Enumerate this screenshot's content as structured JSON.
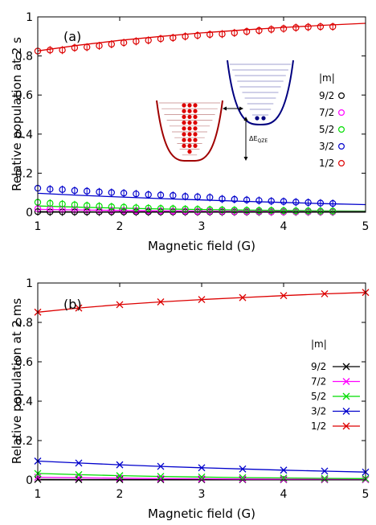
{
  "chart_data": [
    {
      "type": "scatter",
      "panel_label": "(a)",
      "xlabel": "Magnetic field (G)",
      "ylabel": "Relative population at 2 s",
      "xlim": [
        1,
        5
      ],
      "ylim": [
        0,
        1
      ],
      "x_ticks": [
        "1",
        "2",
        "3",
        "4",
        "5"
      ],
      "y_ticks": [
        "0",
        "0.2",
        "0.4",
        "0.6",
        "0.8",
        "1"
      ],
      "legend_title": "|m|",
      "legend_position": "right",
      "grid": false,
      "series": [
        {
          "name": "9/2",
          "color": "#000000",
          "marker": "circle-bar",
          "x": [
            1.0,
            1.15,
            1.3,
            1.45,
            1.6,
            1.75,
            1.9,
            2.05,
            2.2,
            2.35,
            2.5,
            2.65,
            2.8,
            2.95,
            3.1,
            3.25,
            3.4,
            3.55,
            3.7,
            3.85,
            4.0,
            4.15,
            4.3,
            4.45,
            4.6
          ],
          "y": [
            0.003,
            0.002,
            0.002,
            0.002,
            0.002,
            0.002,
            0.002,
            0.002,
            0.002,
            0.002,
            0.002,
            0.002,
            0.002,
            0.002,
            0.002,
            0.002,
            0.002,
            0.002,
            0.002,
            0.002,
            0.002,
            0.002,
            0.002,
            0.002,
            0.002
          ]
        },
        {
          "name": "7/2",
          "color": "#ff00ff",
          "marker": "circle-bar",
          "x": [
            1.0,
            1.15,
            1.3,
            1.45,
            1.6,
            1.75,
            1.9,
            2.05,
            2.2,
            2.35,
            2.5,
            2.65,
            2.8,
            2.95,
            3.1,
            3.25,
            3.4,
            3.55,
            3.7,
            3.85,
            4.0,
            4.15,
            4.3,
            4.45,
            4.6
          ],
          "y": [
            0.018,
            0.016,
            0.015,
            0.014,
            0.012,
            0.011,
            0.01,
            0.009,
            0.008,
            0.008,
            0.007,
            0.006,
            0.006,
            0.005,
            0.005,
            0.005,
            0.004,
            0.004,
            0.004,
            0.003,
            0.003,
            0.003,
            0.003,
            0.003,
            0.003
          ]
        },
        {
          "name": "5/2",
          "color": "#00dd00",
          "marker": "circle-bar",
          "x": [
            1.0,
            1.15,
            1.3,
            1.45,
            1.6,
            1.75,
            1.9,
            2.05,
            2.2,
            2.35,
            2.5,
            2.65,
            2.8,
            2.95,
            3.1,
            3.25,
            3.4,
            3.55,
            3.7,
            3.85,
            4.0,
            4.15,
            4.3,
            4.45,
            4.6
          ],
          "y": [
            0.051,
            0.046,
            0.042,
            0.038,
            0.034,
            0.031,
            0.028,
            0.026,
            0.023,
            0.021,
            0.019,
            0.018,
            0.016,
            0.015,
            0.013,
            0.012,
            0.011,
            0.01,
            0.009,
            0.009,
            0.008,
            0.007,
            0.007,
            0.006,
            0.006
          ]
        },
        {
          "name": "3/2",
          "color": "#0000cc",
          "marker": "circle-bar",
          "x": [
            1.0,
            1.15,
            1.3,
            1.45,
            1.6,
            1.75,
            1.9,
            2.05,
            2.2,
            2.35,
            2.5,
            2.65,
            2.8,
            2.95,
            3.1,
            3.25,
            3.4,
            3.55,
            3.7,
            3.85,
            4.0,
            4.15,
            4.3,
            4.45,
            4.6
          ],
          "y": [
            0.123,
            0.118,
            0.116,
            0.111,
            0.108,
            0.104,
            0.101,
            0.098,
            0.094,
            0.09,
            0.088,
            0.086,
            0.081,
            0.079,
            0.076,
            0.068,
            0.066,
            0.063,
            0.06,
            0.057,
            0.055,
            0.052,
            0.05,
            0.047,
            0.045
          ]
        },
        {
          "name": "1/2",
          "color": "#dd0000",
          "marker": "circle-bar",
          "x": [
            1.0,
            1.15,
            1.3,
            1.45,
            1.6,
            1.75,
            1.9,
            2.05,
            2.2,
            2.35,
            2.5,
            2.65,
            2.8,
            2.95,
            3.1,
            3.25,
            3.4,
            3.55,
            3.7,
            3.85,
            4.0,
            4.15,
            4.3,
            4.45,
            4.6
          ],
          "y": [
            0.825,
            0.83,
            0.83,
            0.842,
            0.845,
            0.852,
            0.86,
            0.868,
            0.875,
            0.88,
            0.888,
            0.893,
            0.9,
            0.905,
            0.91,
            0.912,
            0.918,
            0.925,
            0.93,
            0.936,
            0.94,
            0.945,
            0.948,
            0.95,
            0.95
          ]
        }
      ],
      "fit_lines": [
        {
          "name": "1/2",
          "color": "#dd0000",
          "x": [
            1,
            1.5,
            2,
            2.5,
            3,
            3.5,
            4,
            4.5,
            5
          ],
          "y": [
            0.826,
            0.855,
            0.88,
            0.9,
            0.918,
            0.933,
            0.946,
            0.957,
            0.967
          ]
        },
        {
          "name": "3/2",
          "color": "#0000cc",
          "x": [
            1,
            1.5,
            2,
            2.5,
            3,
            3.5,
            4,
            4.5,
            5
          ],
          "y": [
            0.097,
            0.087,
            0.078,
            0.07,
            0.063,
            0.056,
            0.05,
            0.044,
            0.039
          ]
        },
        {
          "name": "5/2",
          "color": "#00dd00",
          "x": [
            1,
            1.5,
            2,
            2.5,
            3,
            3.5,
            4,
            4.5,
            5
          ],
          "y": [
            0.032,
            0.026,
            0.021,
            0.017,
            0.014,
            0.011,
            0.009,
            0.007,
            0.006
          ]
        },
        {
          "name": "7/2",
          "color": "#ff00ff",
          "x": [
            1,
            1.5,
            2,
            2.5,
            3,
            3.5,
            4,
            4.5,
            5
          ],
          "y": [
            0.015,
            0.012,
            0.009,
            0.007,
            0.006,
            0.005,
            0.004,
            0.003,
            0.003
          ]
        },
        {
          "name": "9/2",
          "color": "#000000",
          "x": [
            1,
            1.5,
            2,
            2.5,
            3,
            3.5,
            4,
            4.5,
            5
          ],
          "y": [
            0.003,
            0.002,
            0.002,
            0.002,
            0.002,
            0.002,
            0.002,
            0.002,
            0.002
          ]
        }
      ],
      "inset": {
        "annotation": "ΔE",
        "annotation_subscript": "QZE"
      }
    },
    {
      "type": "line",
      "panel_label": "(b)",
      "xlabel": "Magnetic field (G)",
      "ylabel": "Relative population at 2 ms",
      "xlim": [
        1,
        5
      ],
      "ylim": [
        0,
        1
      ],
      "x_ticks": [
        "1",
        "2",
        "3",
        "4",
        "5"
      ],
      "y_ticks": [
        "0",
        "0.2",
        "0.4",
        "0.6",
        "0.8",
        "1"
      ],
      "legend_title": "|m|",
      "legend_position": "right",
      "grid": false,
      "x": [
        1.0,
        1.5,
        2.0,
        2.5,
        3.0,
        3.5,
        4.0,
        4.5,
        5.0
      ],
      "series": [
        {
          "name": "9/2",
          "color": "#000000",
          "marker": "x",
          "values": [
            0.003,
            0.002,
            0.002,
            0.002,
            0.002,
            0.002,
            0.002,
            0.002,
            0.002
          ]
        },
        {
          "name": "7/2",
          "color": "#ff00ff",
          "marker": "x",
          "values": [
            0.014,
            0.011,
            0.009,
            0.007,
            0.006,
            0.005,
            0.004,
            0.004,
            0.003
          ]
        },
        {
          "name": "5/2",
          "color": "#00dd00",
          "marker": "x",
          "values": [
            0.033,
            0.027,
            0.022,
            0.018,
            0.015,
            0.012,
            0.01,
            0.008,
            0.007
          ]
        },
        {
          "name": "3/2",
          "color": "#0000cc",
          "marker": "x",
          "values": [
            0.096,
            0.086,
            0.077,
            0.069,
            0.062,
            0.056,
            0.05,
            0.045,
            0.04
          ]
        },
        {
          "name": "1/2",
          "color": "#dd0000",
          "marker": "x",
          "values": [
            0.852,
            0.873,
            0.89,
            0.904,
            0.916,
            0.926,
            0.936,
            0.945,
            0.952
          ]
        }
      ]
    }
  ]
}
